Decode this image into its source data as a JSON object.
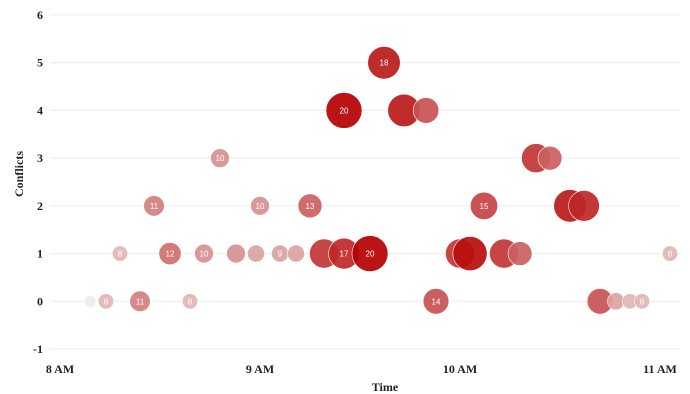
{
  "chart_data": {
    "type": "scatter",
    "xlabel": "Time",
    "ylabel": "Conflicts",
    "xlim": [
      7.95,
      11.1
    ],
    "ylim": [
      -1,
      6
    ],
    "yticks": [
      "-1",
      "0",
      "1",
      "2",
      "3",
      "4",
      "5",
      "6"
    ],
    "xticks": [
      {
        "value": 8,
        "label": "8 AM"
      },
      {
        "value": 9,
        "label": "9 AM"
      },
      {
        "value": 10,
        "label": "10 AM"
      },
      {
        "value": 11,
        "label": "11 AM"
      }
    ],
    "grid": "horizontal",
    "colors": {
      "low": "#ececec",
      "high": "#b50000"
    },
    "points": [
      {
        "x": 8.15,
        "y": 0,
        "size": 6,
        "label": ""
      },
      {
        "x": 8.23,
        "y": 0,
        "size": 8,
        "label": "8"
      },
      {
        "x": 8.4,
        "y": 0,
        "size": 11,
        "label": "11"
      },
      {
        "x": 8.65,
        "y": 0,
        "size": 8,
        "label": "8"
      },
      {
        "x": 8.3,
        "y": 1,
        "size": 8,
        "label": "8"
      },
      {
        "x": 8.55,
        "y": 1,
        "size": 12,
        "label": "12"
      },
      {
        "x": 8.72,
        "y": 1,
        "size": 10,
        "label": "10"
      },
      {
        "x": 8.88,
        "y": 1,
        "size": 10,
        "label": ""
      },
      {
        "x": 8.98,
        "y": 1,
        "size": 9,
        "label": ""
      },
      {
        "x": 9.1,
        "y": 1,
        "size": 9,
        "label": "9"
      },
      {
        "x": 9.18,
        "y": 1,
        "size": 9,
        "label": ""
      },
      {
        "x": 9.32,
        "y": 1,
        "size": 16,
        "label": ""
      },
      {
        "x": 9.42,
        "y": 1,
        "size": 17,
        "label": "17"
      },
      {
        "x": 9.55,
        "y": 1,
        "size": 20,
        "label": "20"
      },
      {
        "x": 8.47,
        "y": 2,
        "size": 11,
        "label": "11"
      },
      {
        "x": 9.0,
        "y": 2,
        "size": 10,
        "label": "10"
      },
      {
        "x": 9.25,
        "y": 2,
        "size": 13,
        "label": "13"
      },
      {
        "x": 8.8,
        "y": 3,
        "size": 10,
        "label": "10"
      },
      {
        "x": 9.42,
        "y": 4,
        "size": 20,
        "label": "20"
      },
      {
        "x": 9.72,
        "y": 4,
        "size": 18,
        "label": ""
      },
      {
        "x": 9.83,
        "y": 4,
        "size": 14,
        "label": ""
      },
      {
        "x": 9.62,
        "y": 5,
        "size": 18,
        "label": "18"
      },
      {
        "x": 9.88,
        "y": 0,
        "size": 14,
        "label": "14"
      },
      {
        "x": 10.0,
        "y": 1,
        "size": 16,
        "label": ""
      },
      {
        "x": 10.05,
        "y": 1,
        "size": 19,
        "label": ""
      },
      {
        "x": 10.22,
        "y": 1,
        "size": 16,
        "label": ""
      },
      {
        "x": 10.3,
        "y": 1,
        "size": 13,
        "label": ""
      },
      {
        "x": 10.12,
        "y": 2,
        "size": 15,
        "label": "15"
      },
      {
        "x": 10.55,
        "y": 2,
        "size": 18,
        "label": ""
      },
      {
        "x": 10.62,
        "y": 2,
        "size": 17,
        "label": ""
      },
      {
        "x": 10.38,
        "y": 3,
        "size": 16,
        "label": ""
      },
      {
        "x": 10.45,
        "y": 3,
        "size": 13,
        "label": ""
      },
      {
        "x": 10.7,
        "y": 0,
        "size": 14,
        "label": ""
      },
      {
        "x": 10.78,
        "y": 0,
        "size": 9,
        "label": ""
      },
      {
        "x": 10.85,
        "y": 0,
        "size": 8,
        "label": ""
      },
      {
        "x": 10.91,
        "y": 0,
        "size": 8,
        "label": "8"
      },
      {
        "x": 11.05,
        "y": 1,
        "size": 8,
        "label": "8"
      }
    ]
  }
}
